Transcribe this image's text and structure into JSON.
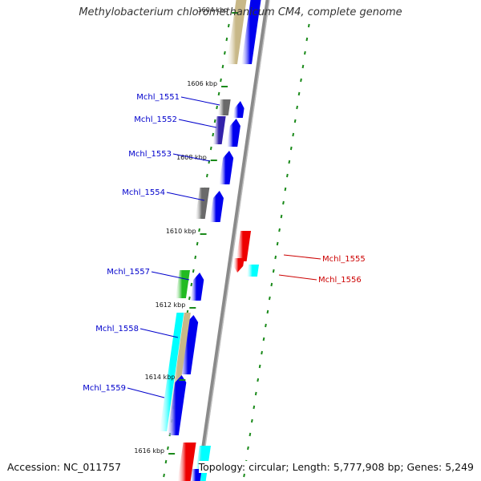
{
  "title": "Methylobacterium chloromethanicum CM4, complete genome",
  "footer": {
    "accession": "Accession: NC_011757",
    "summary": "Topology: circular; Length: 5,777,908 bp; Genes: 5,249"
  },
  "colors": {
    "background": "#ffffff",
    "backbone": "#8a8a8a",
    "tick": "#1a8a1a",
    "forward_label": "#0000cc",
    "reverse_label": "#cc0000",
    "blue_gene": "#0000ee",
    "red_gene": "#ee0000",
    "cyan_gene": "#00ffff",
    "green_gene": "#22bb22",
    "gray_gene": "#6a6a6a",
    "tan_gene": "#c8b888",
    "indigo_gene": "#3322aa"
  },
  "ticks": [
    {
      "label": "1604 kbp"
    },
    {
      "label": "1606 kbp"
    },
    {
      "label": "1608 kbp"
    },
    {
      "label": "1610 kbp"
    },
    {
      "label": "1612 kbp"
    },
    {
      "label": "1614 kbp"
    },
    {
      "label": "1616 kbp"
    }
  ],
  "genes": [
    {
      "id": "Mchl_1551",
      "strand": "forward"
    },
    {
      "id": "Mchl_1552",
      "strand": "forward"
    },
    {
      "id": "Mchl_1553",
      "strand": "forward"
    },
    {
      "id": "Mchl_1554",
      "strand": "forward"
    },
    {
      "id": "Mchl_1555",
      "strand": "reverse"
    },
    {
      "id": "Mchl_1556",
      "strand": "reverse"
    },
    {
      "id": "Mchl_1557",
      "strand": "forward"
    },
    {
      "id": "Mchl_1558",
      "strand": "forward"
    },
    {
      "id": "Mchl_1559",
      "strand": "forward"
    }
  ]
}
